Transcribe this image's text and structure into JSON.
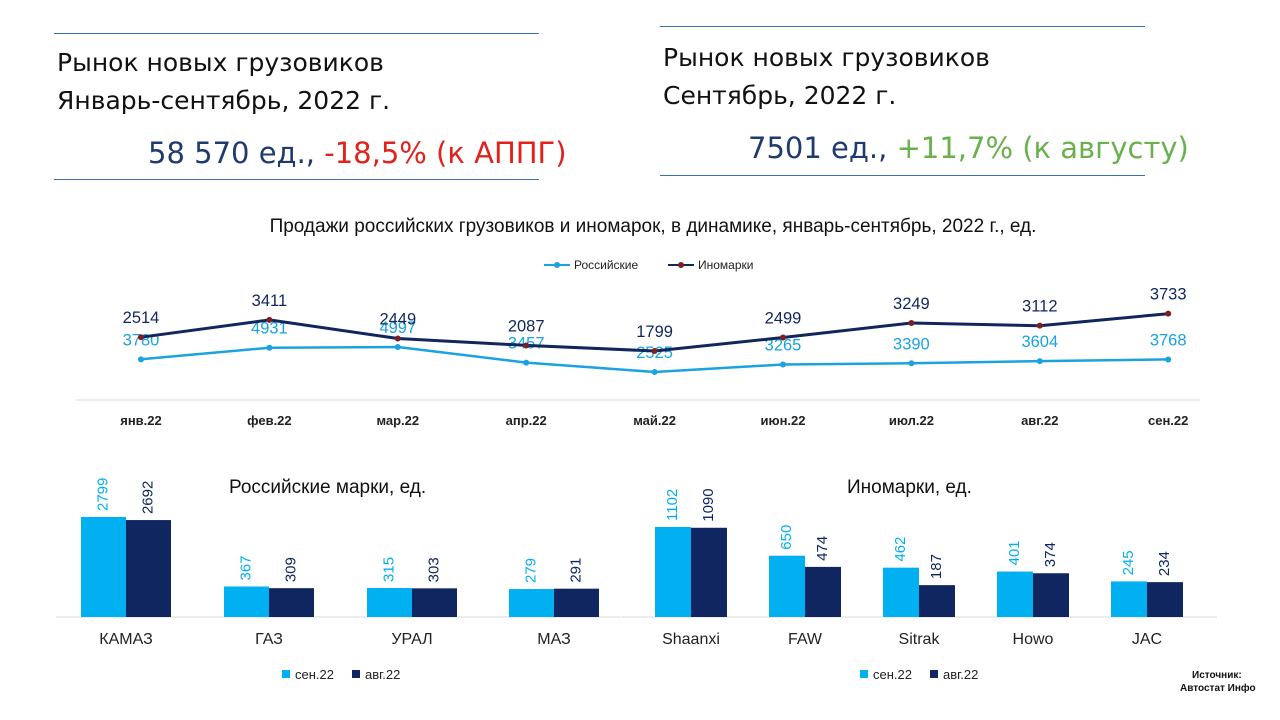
{
  "kpi_left": {
    "title_line1": "Рынок новых грузовиков",
    "title_line2": "Январь-сентябрь, 2022 г.",
    "value": "58 570 ед.,",
    "change": "-18,5% (к АППГ)"
  },
  "kpi_right": {
    "title_line1": "Рынок новых грузовиков",
    "title_line2": "Сентябрь, 2022 г.",
    "value": "7501 ед.,",
    "change": "+11,7% (к августу)"
  },
  "colors": {
    "russian": "#1aa3e0",
    "foreign": "#12265e",
    "bar_sep": "#00b0f0",
    "bar_aug": "#0f2660"
  },
  "chart_data": [
    {
      "type": "line",
      "title": "Продажи российских грузовиков и иномарок, в динамике, январь-сентябрь, 2022 г., ед.",
      "categories": [
        "янв.22",
        "фев.22",
        "мар.22",
        "апр.22",
        "май.22",
        "июн.22",
        "июл.22",
        "авг.22",
        "сен.22"
      ],
      "series": [
        {
          "name": "Российские",
          "values": [
            3780,
            4931,
            4997,
            3457,
            2525,
            3265,
            3390,
            3604,
            3768
          ]
        },
        {
          "name": "Иномарки",
          "values": [
            2514,
            3411,
            2449,
            2087,
            1799,
            2499,
            3249,
            3112,
            3733
          ]
        }
      ],
      "legend": "top-center"
    },
    {
      "type": "bar",
      "title": "Российские марки, ед.",
      "categories": [
        "КАМАЗ",
        "ГАЗ",
        "УРАЛ",
        "МАЗ"
      ],
      "series": [
        {
          "name": "сен.22",
          "values": [
            2799,
            367,
            315,
            279
          ]
        },
        {
          "name": "авг.22",
          "values": [
            2692,
            309,
            303,
            291
          ]
        }
      ],
      "legend": "bottom-left"
    },
    {
      "type": "bar",
      "title": "Иномарки, ед.",
      "categories": [
        "Shaanxi",
        "FAW",
        "Sitrak",
        "Howo",
        "JAC"
      ],
      "series": [
        {
          "name": "сен.22",
          "values": [
            1102,
            650,
            462,
            401,
            245
          ]
        },
        {
          "name": "авг.22",
          "values": [
            1090,
            474,
            187,
            374,
            234
          ]
        }
      ],
      "legend": "bottom-left"
    }
  ],
  "source": {
    "line1": "Источник:",
    "line2": "Автостат Инфо"
  }
}
